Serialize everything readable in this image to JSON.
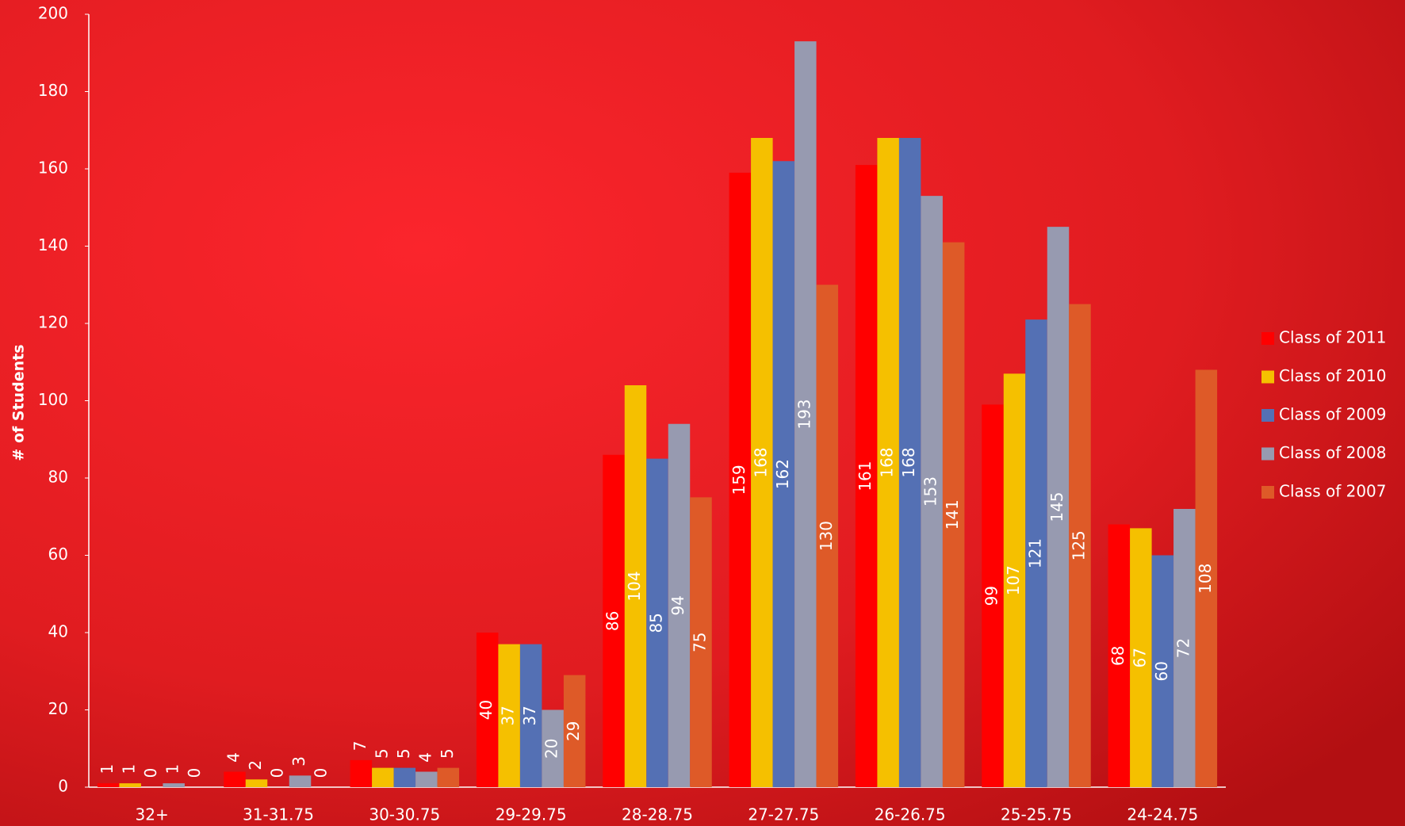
{
  "chart_data": {
    "type": "bar",
    "y_label": "# of Students",
    "categories": [
      "32+",
      "31-31.75",
      "30-30.75",
      "29-29.75",
      "28-28.75",
      "27-27.75",
      "26-26.75",
      "25-25.75",
      "24-24.75"
    ],
    "series": [
      {
        "name": "Class of 2011",
        "color": "#ff0000",
        "values": [
          1,
          4,
          7,
          40,
          86,
          159,
          161,
          99,
          68
        ]
      },
      {
        "name": "Class of 2010",
        "color": "#f5c000",
        "values": [
          1,
          2,
          5,
          37,
          104,
          168,
          168,
          107,
          67
        ]
      },
      {
        "name": "Class of 2009",
        "color": "#5470b4",
        "values": [
          0,
          0,
          5,
          37,
          85,
          162,
          168,
          121,
          60
        ]
      },
      {
        "name": "Class of 2008",
        "color": "#979ab0",
        "values": [
          1,
          3,
          4,
          20,
          94,
          193,
          153,
          145,
          72
        ]
      },
      {
        "name": "Class of 2007",
        "color": "#de5a28",
        "values": [
          0,
          0,
          5,
          29,
          75,
          130,
          141,
          125,
          108
        ]
      }
    ],
    "ylim": [
      0,
      200
    ],
    "yticks": [
      0,
      20,
      40,
      60,
      80,
      100,
      120,
      140,
      160,
      180,
      200
    ],
    "legend": "right"
  }
}
